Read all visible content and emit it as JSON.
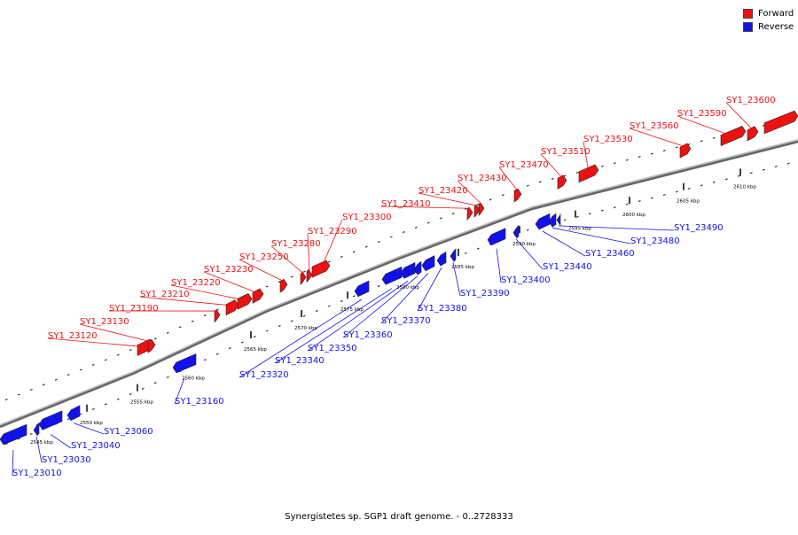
{
  "caption": "Synergistetes sp. SGP1 draft genome. - 0..2728333",
  "legend": [
    {
      "label": "Forward",
      "color": "#ee1111"
    },
    {
      "label": "Reverse",
      "color": "#1111ee"
    }
  ],
  "colors": {
    "forward": "#ee1111",
    "reverse": "#1111ee",
    "axis": "#666666"
  },
  "scale": {
    "unit": "kbp",
    "ticks_kbp": [
      2545,
      2550,
      2555,
      2560,
      2565,
      2570,
      2575,
      2580,
      2585,
      2590,
      2595,
      2600,
      2605,
      2610
    ]
  },
  "forward_genes": [
    "SY1_23120",
    "SY1_23130",
    "SY1_23190",
    "SY1_23210",
    "SY1_23220",
    "SY1_23230",
    "SY1_23250",
    "SY1_23280",
    "SY1_23290",
    "SY1_23300",
    "SY1_23410",
    "SY1_23420",
    "SY1_23430",
    "SY1_23470",
    "SY1_23510",
    "SY1_23530",
    "SY1_23560",
    "SY1_23590",
    "SY1_23600"
  ],
  "reverse_genes": [
    "SY1_23010",
    "SY1_23030",
    "SY1_23040",
    "SY1_23060",
    "SY1_23160",
    "SY1_23320",
    "SY1_23340",
    "SY1_23350",
    "SY1_23360",
    "SY1_23370",
    "SY1_23380",
    "SY1_23390",
    "SY1_23400",
    "SY1_23440",
    "SY1_23460",
    "SY1_23480",
    "SY1_23490"
  ]
}
